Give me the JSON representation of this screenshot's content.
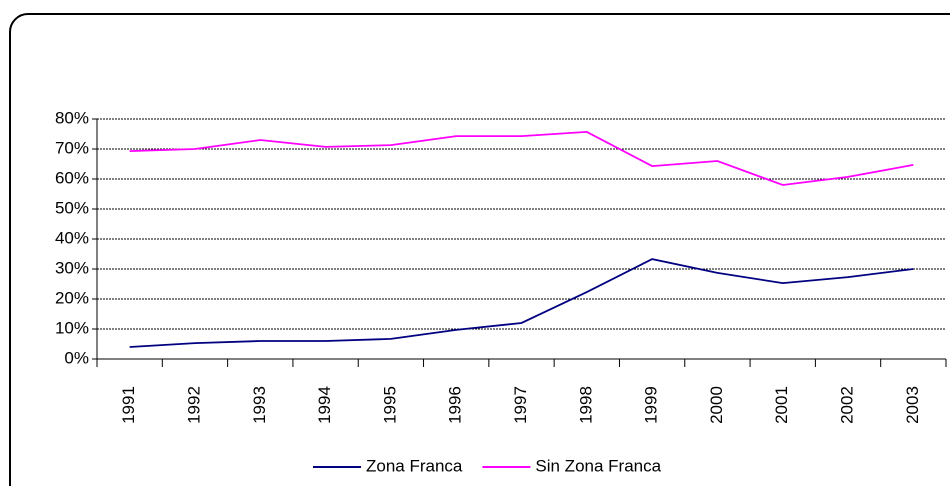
{
  "chart_data": {
    "type": "line",
    "categories": [
      "1991",
      "1992",
      "1993",
      "1994",
      "1995",
      "1996",
      "1997",
      "1998",
      "1999",
      "2000",
      "2001",
      "2002",
      "2003"
    ],
    "series": [
      {
        "name": "Zona Franca",
        "color": "#000080",
        "values": [
          4,
          5.3,
          6,
          6,
          6.7,
          9.7,
          12,
          22.3,
          33.3,
          28.7,
          25.3,
          27.3,
          30
        ]
      },
      {
        "name": "Sin Zona Franca",
        "color": "#ff00ff",
        "values": [
          69.3,
          70,
          73,
          70.7,
          71.3,
          74.3,
          74.3,
          75.7,
          64.3,
          66,
          58,
          60.7,
          64.7
        ]
      }
    ],
    "ylim": [
      0,
      80
    ],
    "yticks": [
      {
        "value": 0,
        "label": "0%"
      },
      {
        "value": 10,
        "label": "10%"
      },
      {
        "value": 20,
        "label": "20%"
      },
      {
        "value": 30,
        "label": "30%"
      },
      {
        "value": 40,
        "label": "40%"
      },
      {
        "value": 50,
        "label": "50%"
      },
      {
        "value": 60,
        "label": "60%"
      },
      {
        "value": 70,
        "label": "70%"
      },
      {
        "value": 80,
        "label": "80%"
      }
    ],
    "grid": true,
    "legend": "bottom"
  }
}
